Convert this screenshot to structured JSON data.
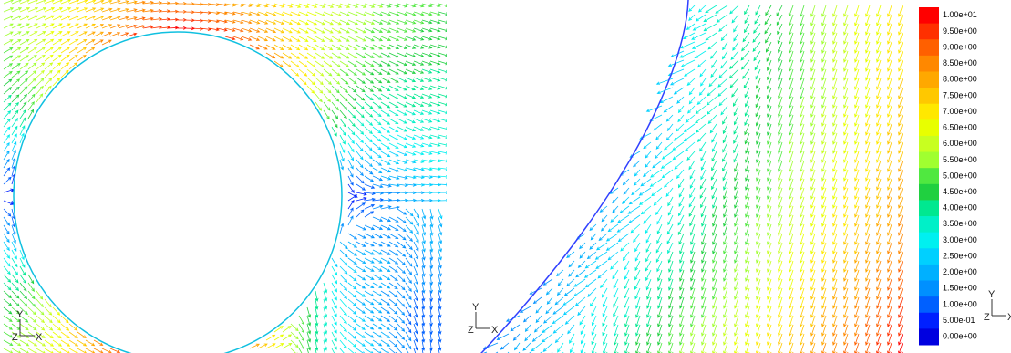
{
  "colorbar": {
    "labels": [
      "1.00e+01",
      "9.50e+00",
      "9.00e+00",
      "8.50e+00",
      "8.00e+00",
      "7.50e+00",
      "7.00e+00",
      "6.50e+00",
      "6.00e+00",
      "5.50e+00",
      "5.00e+00",
      "4.50e+00",
      "4.00e+00",
      "3.50e+00",
      "3.00e+00",
      "2.50e+00",
      "2.00e+00",
      "1.50e+00",
      "1.00e+00",
      "5.00e-01",
      "0.00e+00"
    ],
    "colors": [
      "#ff0000",
      "#ff3000",
      "#ff6000",
      "#ff8800",
      "#ffa800",
      "#ffc800",
      "#ffe800",
      "#e8ff00",
      "#c8ff20",
      "#a0ff30",
      "#50e840",
      "#20d040",
      "#00e890",
      "#00f0c8",
      "#00f0f0",
      "#00d0ff",
      "#00b0ff",
      "#0090ff",
      "#0060ff",
      "#0020ff",
      "#0000e0"
    ]
  },
  "triads": [
    {
      "y": "Y",
      "z": "Z",
      "x": "X"
    },
    {
      "y": "Y",
      "z": "Z",
      "x": "X"
    },
    {
      "y": "Y",
      "z": "Z",
      "x": "X"
    }
  ]
}
